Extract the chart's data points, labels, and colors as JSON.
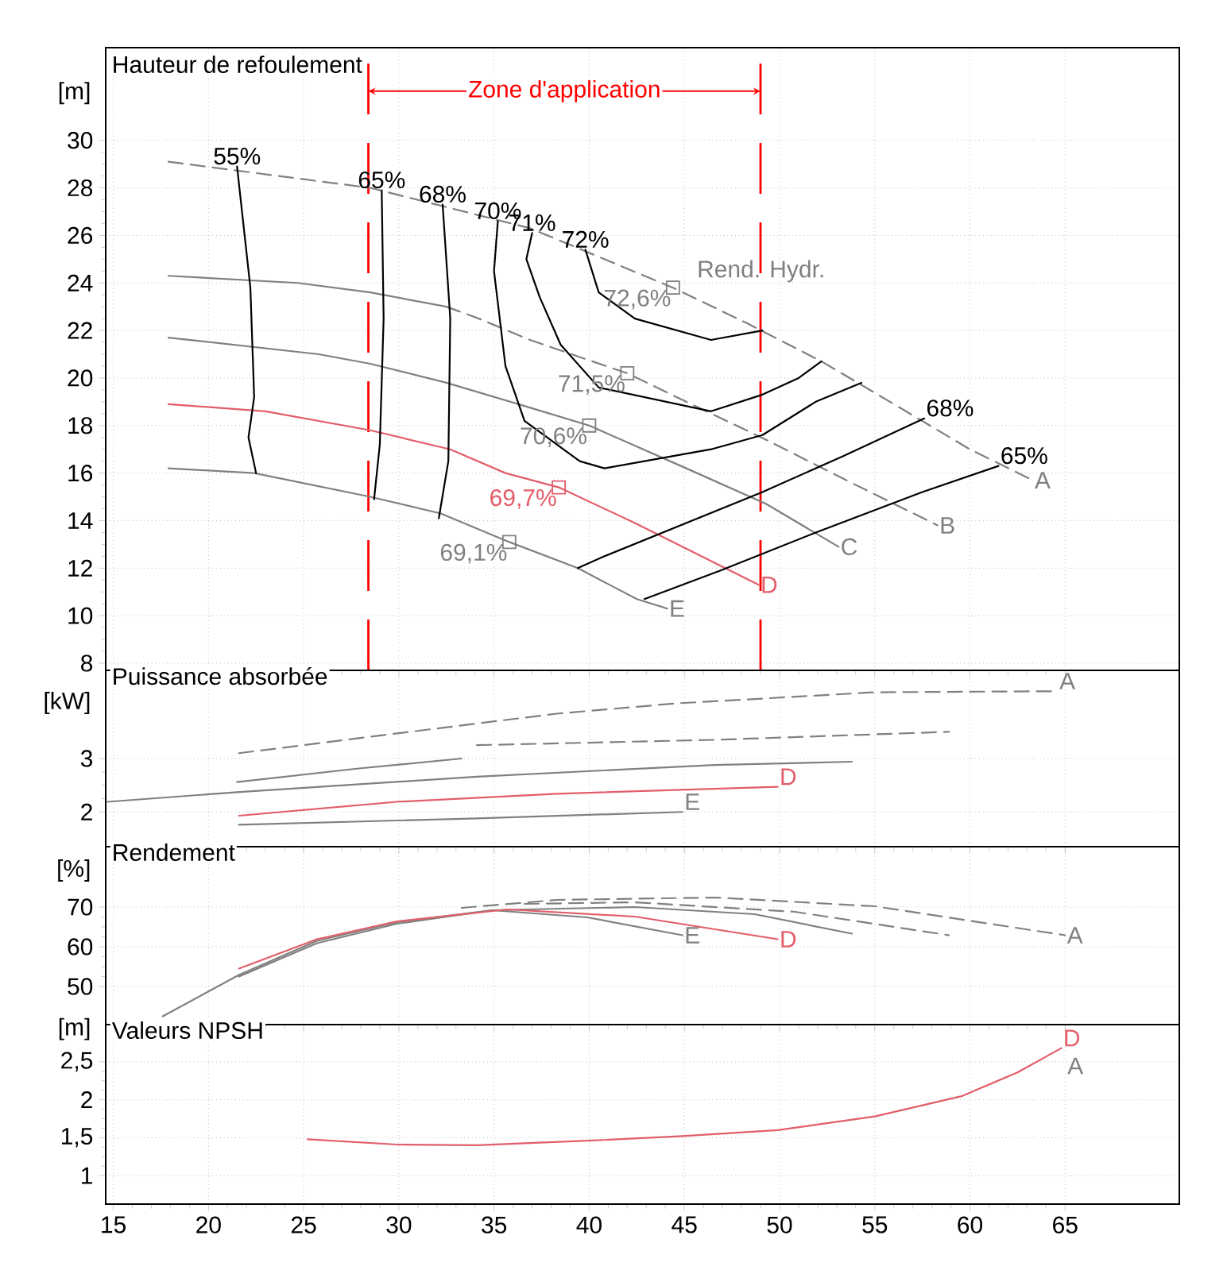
{
  "chart_data": [
    {
      "type": "line",
      "title": "Hauteur de refoulement",
      "ylabel": "[m]",
      "xlim": [
        14.6,
        71
      ],
      "ylim": [
        7.7,
        33.9
      ],
      "xticks": [
        15,
        20,
        25,
        30,
        35,
        40,
        45,
        50,
        55,
        60,
        65
      ],
      "yticks": [
        8,
        10,
        12,
        14,
        16,
        18,
        20,
        22,
        24,
        26,
        28,
        30
      ],
      "tick_labels": "y",
      "grid": true,
      "series": [
        {
          "name": "A",
          "color": "#808080",
          "line_style": "dashed",
          "x": [
            17.9,
            28.5,
            36.9,
            40.8,
            44.4,
            48.3,
            52.2,
            55.8,
            60.0,
            63.3
          ],
          "values": [
            29.1,
            28.0,
            26.3,
            25.0,
            23.8,
            22.3,
            20.7,
            19.0,
            17.0,
            15.7
          ]
        },
        {
          "color": "#808080",
          "x": [
            17.9,
            24.7,
            28.5,
            32.5
          ],
          "values": [
            24.3,
            24.0,
            23.6,
            23.0
          ]
        },
        {
          "name": "B",
          "color": "#808080",
          "line_style": "dashed",
          "x": [
            32.5,
            34.2,
            36.9,
            39.8,
            42.0,
            45.1,
            49.3,
            53.5,
            58.3
          ],
          "values": [
            23.0,
            22.5,
            21.6,
            20.8,
            20.2,
            19.0,
            17.4,
            15.7,
            13.8
          ]
        },
        {
          "name": "C",
          "color": "#808080",
          "x": [
            17.9,
            25.8,
            28.5,
            32.5,
            36.7,
            40.0,
            45.1,
            49.3,
            53.1
          ],
          "values": [
            21.7,
            21.0,
            20.6,
            19.8,
            18.8,
            18.0,
            16.2,
            14.7,
            12.9
          ]
        },
        {
          "name": "D",
          "color": "#e35d6a",
          "x": [
            17.9,
            23.0,
            28.5,
            32.7,
            35.6,
            38.4,
            42.4,
            48.9
          ],
          "values": [
            18.9,
            18.6,
            17.8,
            17.0,
            16.0,
            15.4,
            13.9,
            11.3
          ]
        },
        {
          "name": "E",
          "color": "#808080",
          "x": [
            17.9,
            22.4,
            28.5,
            32.2,
            35.8,
            39.4,
            42.5,
            44.1
          ],
          "values": [
            16.2,
            16.0,
            15.0,
            14.3,
            13.1,
            12.0,
            10.7,
            10.3
          ]
        },
        {
          "name": "55%",
          "color": "#000000",
          "x": [
            22.5,
            22.1,
            22.4,
            22.2,
            21.5
          ],
          "values": [
            16.0,
            17.5,
            19.2,
            23.8,
            28.9
          ]
        },
        {
          "name": "65%",
          "color": "#000000",
          "x": [
            28.7,
            29.0,
            29.2,
            29.1
          ],
          "values": [
            14.9,
            17.2,
            22.5,
            27.9
          ]
        },
        {
          "name": "68%",
          "color": "#000000",
          "x": [
            32.1,
            32.6,
            32.7,
            32.3
          ],
          "values": [
            14.1,
            16.5,
            22.5,
            27.3
          ]
        },
        {
          "name": "70%",
          "color": "#000000",
          "x": [
            54.3,
            51.9,
            49.1,
            46.4,
            40.8,
            39.5,
            36.6,
            35.6,
            35.0,
            35.2
          ],
          "values": [
            19.8,
            19.0,
            17.6,
            17.0,
            16.2,
            16.5,
            18.2,
            20.5,
            24.5,
            26.6
          ]
        },
        {
          "name": "71%",
          "color": "#000000",
          "x": [
            52.2,
            51.0,
            49.1,
            46.4,
            40.5,
            38.5,
            37.4,
            36.7,
            37.0
          ],
          "values": [
            20.7,
            20.0,
            19.3,
            18.6,
            19.6,
            21.4,
            23.4,
            25.0,
            26.1
          ]
        },
        {
          "name": "72%",
          "color": "#000000",
          "x": [
            49.1,
            46.4,
            42.4,
            40.5,
            39.8
          ],
          "values": [
            22.0,
            21.6,
            22.5,
            23.6,
            25.4
          ]
        },
        {
          "name": "68%",
          "color": "#000000",
          "x": [
            39.4,
            40.8,
            49.1,
            53.3,
            57.6
          ],
          "values": [
            12.0,
            12.5,
            15.2,
            16.7,
            18.3
          ]
        },
        {
          "name": "65%",
          "color": "#000000",
          "x": [
            42.9,
            46.9,
            51.9,
            57.5,
            61.5
          ],
          "values": [
            10.7,
            11.9,
            13.5,
            15.2,
            16.3
          ]
        },
        {
          "type": "scatter",
          "marker": "square",
          "colors": [
            "#808080",
            "#808080",
            "#808080",
            "#e35d6a",
            "#808080"
          ],
          "x": [
            44.4,
            42.0,
            40.0,
            38.4,
            35.8
          ],
          "values": [
            23.8,
            20.2,
            18.0,
            15.4,
            13.1
          ]
        }
      ],
      "annotations": [
        "Rend. Hydr.",
        {
          "text": "72,6%",
          "x": 44.4,
          "y": 23.8
        },
        {
          "text": "71,5%",
          "x": 42.0,
          "y": 20.2
        },
        {
          "text": "70,6%",
          "x": 40.0,
          "y": 18.0
        },
        {
          "text": "69,7%",
          "x": 38.4,
          "y": 15.4
        },
        {
          "text": "69,1%",
          "x": 35.8,
          "y": 13.1
        }
      ],
      "ref_lines": [
        {
          "axis": "x",
          "value": 28.4,
          "label": "Zone d'application",
          "color": "#ff0000",
          "line_style": "dashed"
        },
        {
          "axis": "x",
          "value": 49.0,
          "color": "#ff0000",
          "line_style": "dashed"
        }
      ]
    },
    {
      "type": "line",
      "title": "Puissance absorbée",
      "ylabel": "[kW]",
      "xlim": [
        14.6,
        71
      ],
      "ylim": [
        1.35,
        4.65
      ],
      "xticks": [
        15,
        20,
        25,
        30,
        35,
        40,
        45,
        50,
        55,
        60,
        65
      ],
      "yticks": [
        2,
        3
      ],
      "tick_labels": "y",
      "grid": true,
      "series": [
        {
          "name": "A",
          "color": "#808080",
          "line_style": "dashed",
          "x": [
            21.6,
            29.9,
            38.3,
            44.5,
            55.0,
            64.6
          ],
          "values": [
            3.1,
            3.47,
            3.84,
            4.03,
            4.24,
            4.26
          ]
        },
        {
          "color": "#808080",
          "x": [
            21.5,
            27.8,
            33.3
          ],
          "values": [
            2.56,
            2.81,
            3.0
          ]
        },
        {
          "color": "#808080",
          "line_style": "dashed",
          "x": [
            34.1,
            46.6,
            58.9
          ],
          "values": [
            3.25,
            3.35,
            3.5
          ]
        },
        {
          "color": "#808080",
          "x": [
            14.7,
            21.5,
            34.1,
            46.6,
            53.8
          ],
          "values": [
            2.19,
            2.37,
            2.66,
            2.88,
            2.94
          ]
        },
        {
          "name": "D",
          "color": "#e35d6a",
          "x": [
            21.6,
            29.9,
            38.3,
            49.9
          ],
          "values": [
            1.93,
            2.19,
            2.34,
            2.47
          ]
        },
        {
          "name": "E",
          "color": "#808080",
          "x": [
            21.6,
            34.1,
            44.9
          ],
          "values": [
            1.76,
            1.88,
            2.0
          ]
        }
      ]
    },
    {
      "type": "line",
      "title": "Rendement",
      "ylabel": "[%]",
      "xlim": [
        14.6,
        71
      ],
      "ylim": [
        40.4,
        85.2
      ],
      "xticks": [
        15,
        20,
        25,
        30,
        35,
        40,
        45,
        50,
        55,
        60,
        65
      ],
      "yticks": [
        50,
        60,
        70
      ],
      "tick_labels": "y",
      "grid": true,
      "series": [
        {
          "name": "A",
          "color": "#808080",
          "line_style": "dashed",
          "x": [
            33.3,
            38.3,
            46.6,
            55.0,
            65.0
          ],
          "values": [
            69.8,
            71.8,
            72.4,
            70.2,
            62.9
          ]
        },
        {
          "color": "#808080",
          "line_style": "dashed",
          "x": [
            36.6,
            42.4,
            50.8,
            58.9
          ],
          "values": [
            70.8,
            71.2,
            68.8,
            62.9
          ]
        },
        {
          "color": "#808080",
          "x": [
            17.6,
            21.6,
            25.7,
            29.9,
            34.9,
            42.4,
            48.7,
            53.8
          ],
          "values": [
            42.5,
            52.9,
            61.5,
            66.2,
            69.2,
            70.0,
            68.2,
            63.3
          ]
        },
        {
          "name": "E",
          "color": "#808080",
          "x": [
            21.6,
            25.7,
            29.9,
            34.9,
            39.9,
            44.9
          ],
          "values": [
            52.5,
            60.9,
            65.8,
            69.2,
            67.4,
            62.9
          ]
        },
        {
          "name": "D",
          "color": "#e35d6a",
          "x": [
            21.6,
            25.7,
            29.9,
            35.7,
            42.4,
            49.9
          ],
          "values": [
            54.5,
            61.9,
            66.4,
            69.4,
            67.6,
            61.9
          ]
        }
      ]
    },
    {
      "type": "line",
      "title": "Valeurs NPSH",
      "ylabel": "[m]",
      "xlim": [
        14.6,
        71
      ],
      "ylim": [
        0.625,
        2.99
      ],
      "xticks": [
        15,
        20,
        25,
        30,
        35,
        40,
        45,
        50,
        55,
        60,
        65
      ],
      "yticks": [
        1,
        {
          "value": 1.5,
          "label": "1,5"
        },
        2,
        {
          "value": 2.5,
          "label": "2,5"
        }
      ],
      "grid": true,
      "series": [
        {
          "name": "D",
          "color": "#e35d6a",
          "x": [
            25.2,
            29.9,
            34.1,
            39.9,
            44.9,
            49.9,
            55.0,
            59.6,
            62.5,
            64.8
          ],
          "values": [
            1.48,
            1.41,
            1.4,
            1.46,
            1.52,
            1.6,
            1.78,
            2.05,
            2.36,
            2.68
          ]
        }
      ],
      "annotations": [
        "A"
      ]
    }
  ]
}
